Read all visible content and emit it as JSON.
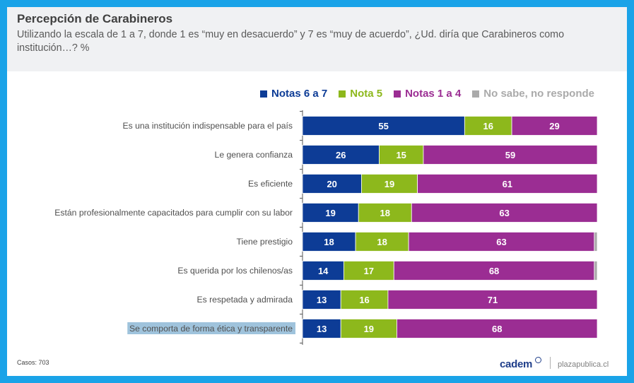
{
  "header": {
    "title": "Percepción de Carabineros",
    "subtitle": "Utilizando la escala de 1 a 7, donde 1 es “muy en desacuerdo” y 7 es “muy de acuerdo”, ¿Ud. diría que Carabineros como institución…? %"
  },
  "footer": {
    "casos": "Casos: 703",
    "brand": "cadem",
    "site": "plazapublica.cl"
  },
  "colors": {
    "notas_6_7": "#0d3c96",
    "nota_5": "#8db81c",
    "notas_1_4": "#9b2d93",
    "ns_nr": "#aaaaaa"
  },
  "chart_data": {
    "type": "bar",
    "orientation": "horizontal",
    "stacked": true,
    "xlim": [
      0,
      100
    ],
    "legend_position": "top-right",
    "categories": [
      "Es una institución indispensable para el país",
      "Le genera confianza",
      "Es eficiente",
      "Están profesionalmente capacitados para cumplir con su labor",
      "Tiene prestigio",
      "Es querida por los chilenos/as",
      "Es respetada y admirada",
      "Se comporta de forma ética y transparente"
    ],
    "highlighted_category": "Se comporta de forma ética y transparente",
    "series": [
      {
        "name": "Notas 6 a 7",
        "color": "#0d3c96",
        "values": [
          55,
          26,
          20,
          19,
          18,
          14,
          13,
          13
        ]
      },
      {
        "name": "Nota 5",
        "color": "#8db81c",
        "values": [
          16,
          15,
          19,
          18,
          18,
          17,
          16,
          19
        ]
      },
      {
        "name": "Notas 1 a 4",
        "color": "#9b2d93",
        "values": [
          29,
          59,
          61,
          63,
          63,
          68,
          71,
          68
        ]
      },
      {
        "name": "No sabe, no responde",
        "color": "#aaaaaa",
        "values": [
          0,
          0,
          0,
          0,
          1,
          1,
          0,
          0
        ]
      }
    ]
  }
}
